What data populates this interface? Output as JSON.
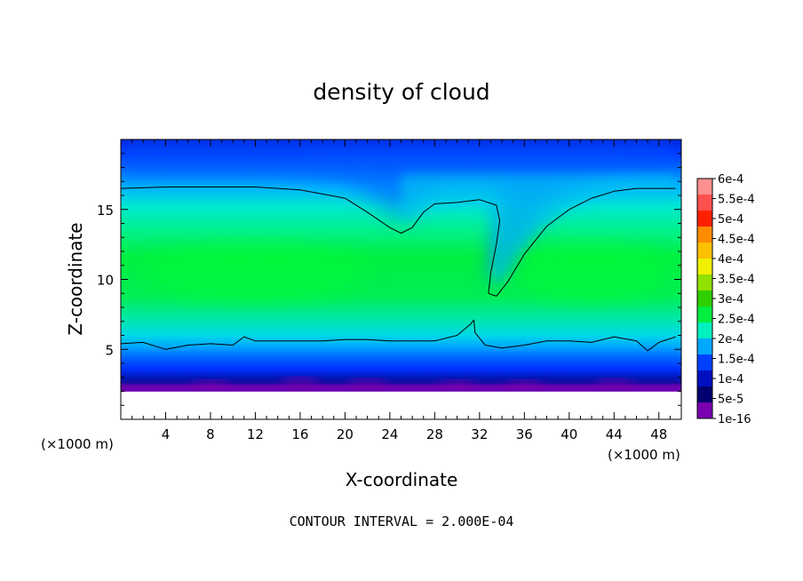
{
  "chart_data": {
    "type": "heatmap",
    "title": "density of cloud",
    "xlabel": "X-coordinate",
    "ylabel": "Z-coordinate",
    "x_unit_label": "(×1000 m)",
    "x_unit_label_right": "(×1000 m)",
    "xlim": [
      0,
      50
    ],
    "ylim": [
      0,
      20
    ],
    "xticks": [
      "4",
      "8",
      "12",
      "16",
      "20",
      "24",
      "28",
      "32",
      "36",
      "40",
      "44",
      "48"
    ],
    "xtick_values": [
      4,
      8,
      12,
      16,
      20,
      24,
      28,
      32,
      36,
      40,
      44,
      48
    ],
    "yticks": [
      "5",
      "10",
      "15"
    ],
    "ytick_values": [
      5,
      10,
      15
    ],
    "contour_interval_text": "CONTOUR INTERVAL = 2.000E-04",
    "colorbar": {
      "labels": [
        "6e-4",
        "5.5e-4",
        "5e-4",
        "4.5e-4",
        "4e-4",
        "3.5e-4",
        "3e-4",
        "2.5e-4",
        "2e-4",
        "1.5e-4",
        "1e-4",
        "5e-5",
        "1e-16"
      ],
      "colors": [
        "#ff9090",
        "#ff5050",
        "#ff2000",
        "#ff8c00",
        "#ffc000",
        "#f0f000",
        "#90e000",
        "#30d000",
        "#00ee40",
        "#00f0c0",
        "#00a8ff",
        "#0040ff",
        "#0010c0",
        "#000070",
        "#7a00b0"
      ]
    },
    "contour_level": 0.0002,
    "upper_contour": [
      [
        0,
        16.5
      ],
      [
        4,
        16.6
      ],
      [
        8,
        16.6
      ],
      [
        12,
        16.6
      ],
      [
        16,
        16.4
      ],
      [
        20,
        15.8
      ],
      [
        22,
        14.8
      ],
      [
        24,
        13.7
      ],
      [
        25,
        13.3
      ],
      [
        26,
        13.7
      ],
      [
        27,
        14.8
      ],
      [
        28,
        15.4
      ],
      [
        30,
        15.5
      ],
      [
        32,
        15.7
      ],
      [
        33.5,
        15.3
      ],
      [
        33.8,
        14.2
      ],
      [
        33.5,
        12.5
      ],
      [
        33,
        10.5
      ],
      [
        32.8,
        9.0
      ],
      [
        33.5,
        8.8
      ],
      [
        34.5,
        9.8
      ],
      [
        36,
        11.8
      ],
      [
        38,
        13.8
      ],
      [
        40,
        15.0
      ],
      [
        42,
        15.8
      ],
      [
        44,
        16.3
      ],
      [
        46,
        16.5
      ],
      [
        49.5,
        16.5
      ]
    ],
    "lower_contour": [
      [
        0,
        5.4
      ],
      [
        2,
        5.5
      ],
      [
        4,
        5.0
      ],
      [
        6,
        5.3
      ],
      [
        8,
        5.4
      ],
      [
        10,
        5.3
      ],
      [
        11,
        5.9
      ],
      [
        12,
        5.6
      ],
      [
        14,
        5.6
      ],
      [
        16,
        5.6
      ],
      [
        18,
        5.6
      ],
      [
        20,
        5.7
      ],
      [
        22,
        5.7
      ],
      [
        24,
        5.6
      ],
      [
        26,
        5.6
      ],
      [
        28,
        5.6
      ],
      [
        30,
        6.0
      ],
      [
        31.2,
        6.8
      ],
      [
        31.5,
        7.1
      ],
      [
        31.6,
        6.2
      ],
      [
        32.5,
        5.3
      ],
      [
        34,
        5.1
      ],
      [
        36,
        5.3
      ],
      [
        38,
        5.6
      ],
      [
        40,
        5.6
      ],
      [
        42,
        5.5
      ],
      [
        44,
        5.9
      ],
      [
        46,
        5.6
      ],
      [
        47,
        4.9
      ],
      [
        48,
        5.5
      ],
      [
        49.5,
        5.9
      ]
    ]
  }
}
